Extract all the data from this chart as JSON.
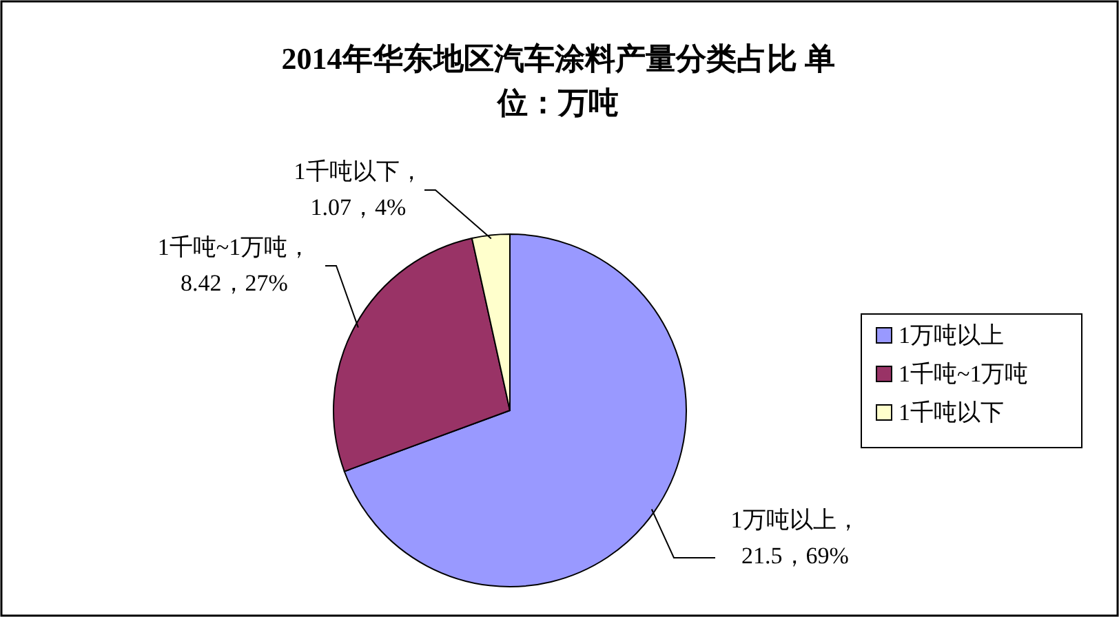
{
  "chart_data": {
    "type": "pie",
    "title": "2014年华东地区汽车涂料产量分类占比 单位：万吨",
    "categories": [
      "1万吨以上",
      "1千吨~1万吨",
      "1千吨以下"
    ],
    "values": [
      21.5,
      8.42,
      1.07
    ],
    "value_labels": [
      "1万吨以上，21.5，69%",
      "1千吨~1万吨，8.42，27%",
      "1千吨以下，1.07，4%"
    ],
    "colors": [
      "#9999ff",
      "#993366",
      "#ffffcc"
    ],
    "legend": "right"
  }
}
